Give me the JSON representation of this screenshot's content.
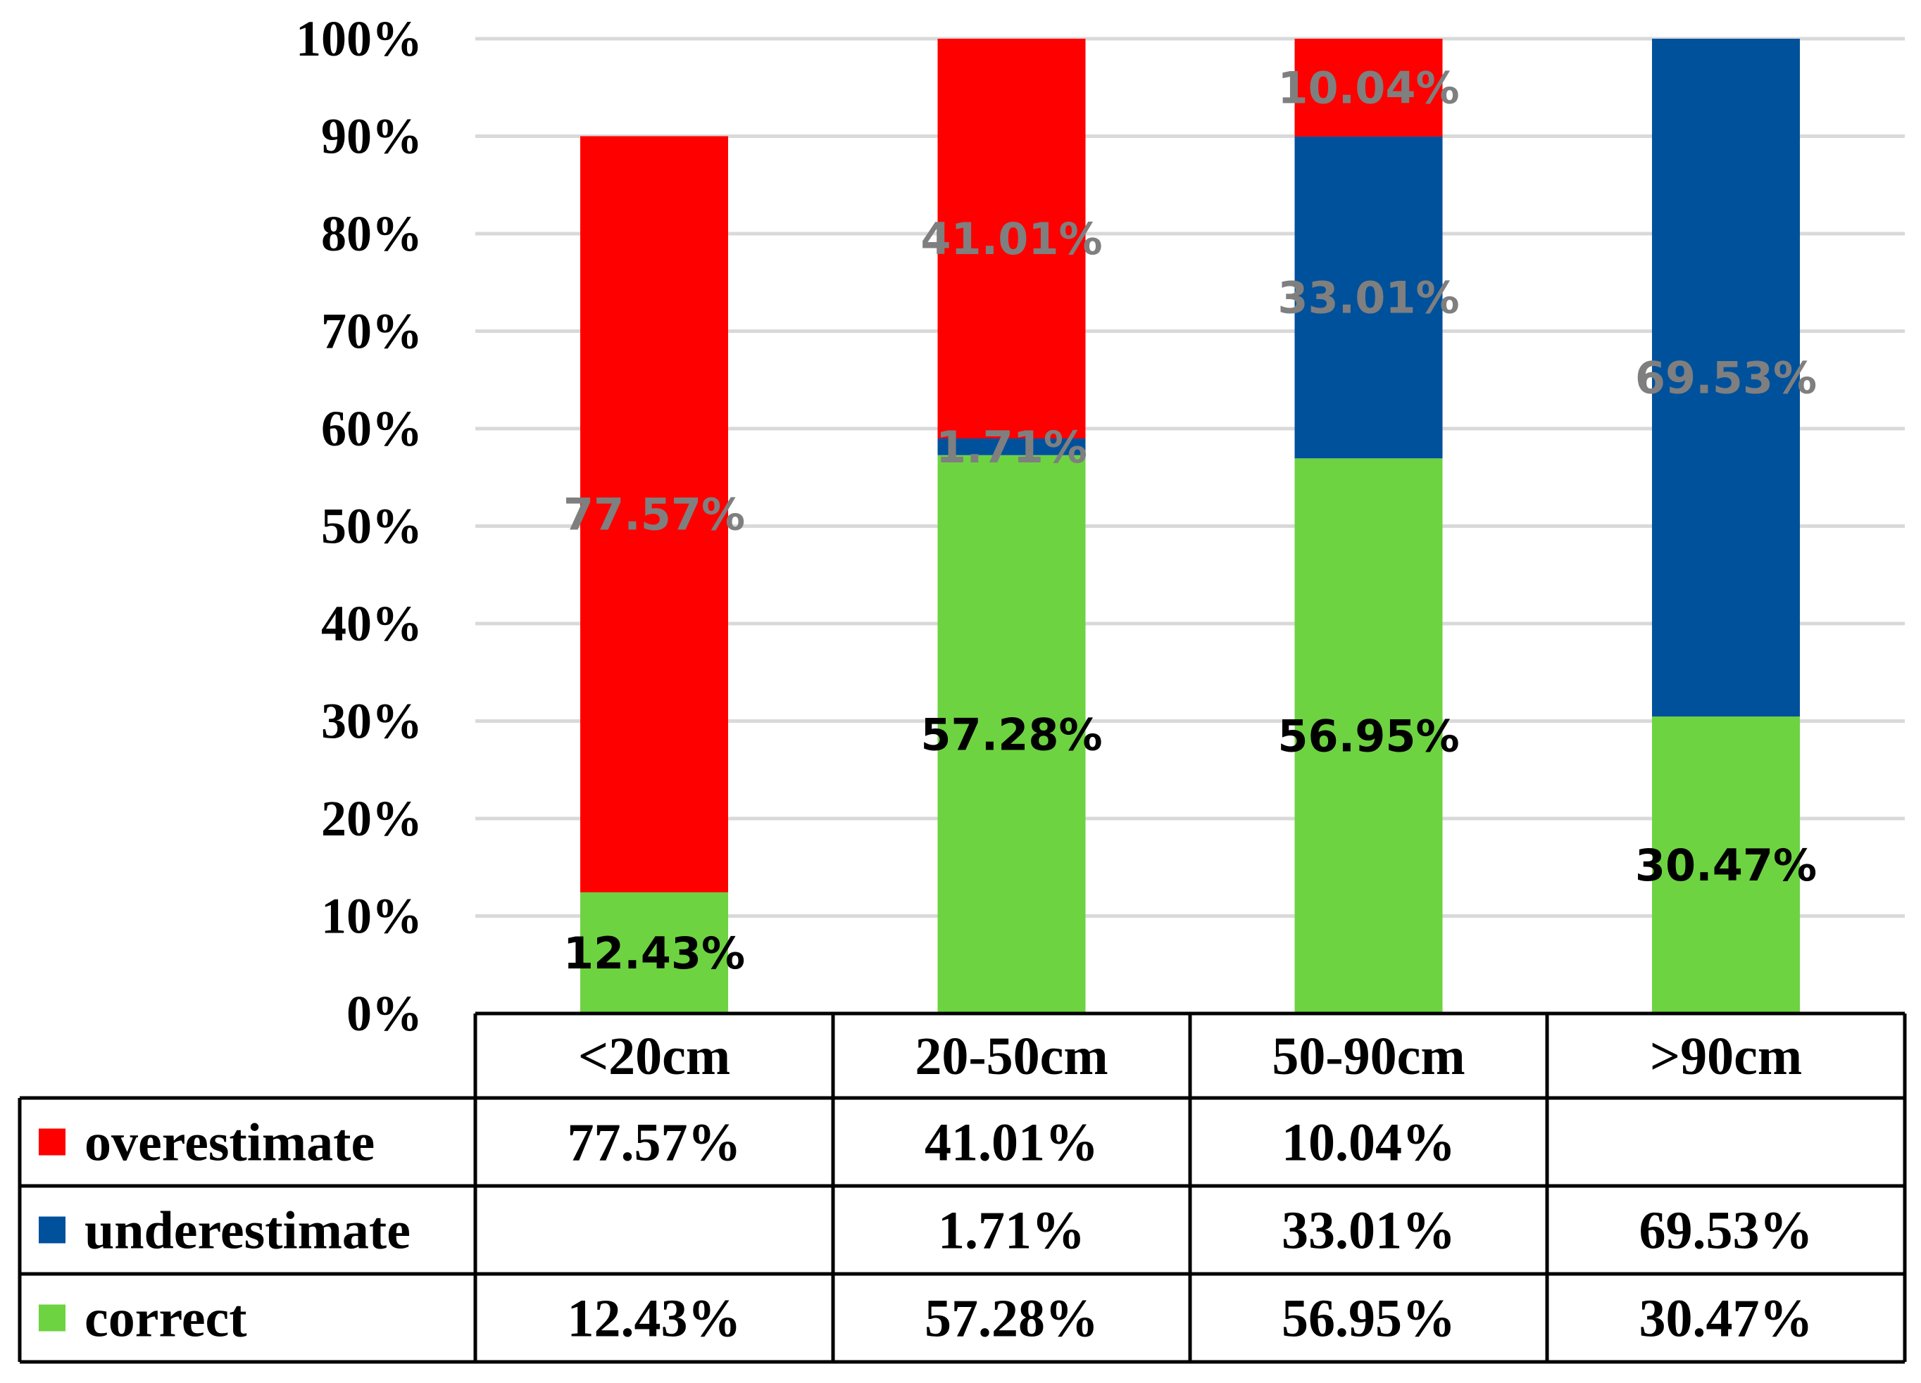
{
  "chart_data": {
    "type": "bar",
    "stacked": true,
    "categories": [
      "<20cm",
      "20-50cm",
      "50-90cm",
      ">90cm"
    ],
    "series": [
      {
        "name": "correct",
        "values": [
          12.43,
          57.28,
          56.95,
          30.47
        ],
        "display": [
          "12.43%",
          "57.28%",
          "56.95%",
          "30.47%"
        ],
        "color": "#6dd341",
        "label_color": "#000000"
      },
      {
        "name": "underestimate",
        "values": [
          0,
          1.71,
          33.01,
          69.53
        ],
        "display": [
          "",
          "1.71%",
          "33.01%",
          "69.53%"
        ],
        "color": "#00519c",
        "label_color": "#7f7f7f"
      },
      {
        "name": "overestimate",
        "values": [
          77.57,
          41.01,
          10.04,
          0
        ],
        "display": [
          "77.57%",
          "41.01%",
          "10.04%",
          ""
        ],
        "color": "#ff0000",
        "label_color": "#7f7f7f"
      }
    ],
    "ylim": [
      0,
      100
    ],
    "yticks": [
      "0%",
      "10%",
      "20%",
      "30%",
      "40%",
      "50%",
      "60%",
      "70%",
      "80%",
      "90%",
      "100%"
    ],
    "grid": true,
    "legend": "data-table",
    "table_row_order": [
      "overestimate",
      "underestimate",
      "correct"
    ],
    "title": "",
    "xlabel": "",
    "ylabel": ""
  }
}
